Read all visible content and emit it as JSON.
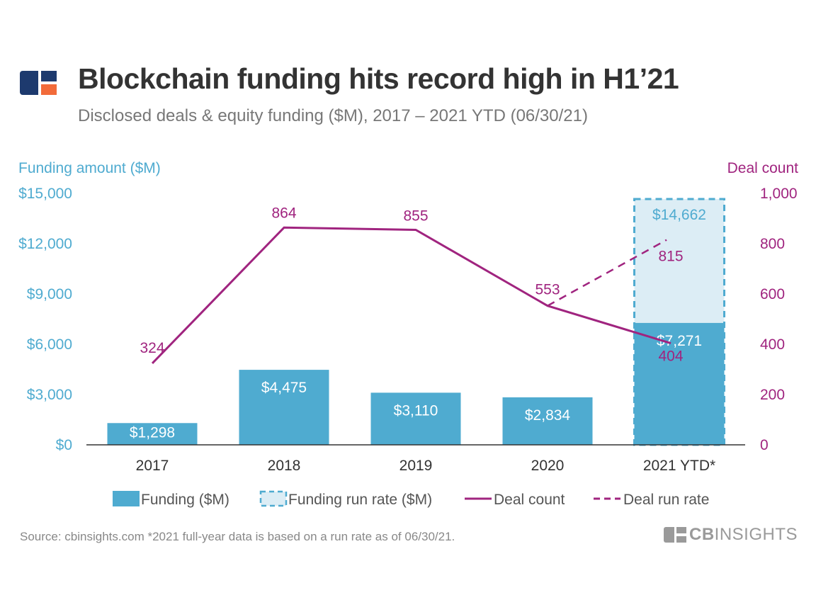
{
  "header": {
    "title": "Blockchain funding hits record high in H1’21",
    "subtitle": "Disclosed deals & equity funding ($M), 2017 – 2021 YTD (06/30/21)"
  },
  "colors": {
    "funding": "#4fabd0",
    "run_rate_fill": "#dcedf5",
    "deal": "#a0247f",
    "axis_left": "#4fabd0",
    "axis_right": "#a0247f",
    "logo_blue": "#1d3a6e",
    "logo_orange": "#f26b3a"
  },
  "chart_data": {
    "type": "bar+line",
    "title": "Blockchain funding hits record high in H1’21",
    "categories": [
      "2017",
      "2018",
      "2019",
      "2020",
      "2021 YTD*"
    ],
    "ylabel_left": "Funding amount ($M)",
    "ylabel_right": "Deal count",
    "ylim_left": [
      0,
      15000
    ],
    "ylim_right": [
      0,
      1000
    ],
    "yticks_left": [
      "$0",
      "$3,000",
      "$6,000",
      "$9,000",
      "$12,000",
      "$15,000"
    ],
    "yticks_left_values": [
      0,
      3000,
      6000,
      9000,
      12000,
      15000
    ],
    "yticks_right": [
      "0",
      "200",
      "400",
      "600",
      "800",
      "1,000"
    ],
    "yticks_right_values": [
      0,
      200,
      400,
      600,
      800,
      1000
    ],
    "series": [
      {
        "name": "Funding ($M)",
        "type": "bar",
        "axis": "left",
        "values": [
          1298,
          4475,
          3110,
          2834,
          7271
        ],
        "labels": [
          "$1,298",
          "$4,475",
          "$3,110",
          "$2,834",
          "$7,271"
        ]
      },
      {
        "name": "Funding run rate ($M)",
        "type": "bar-dashed",
        "axis": "left",
        "category": "2021 YTD*",
        "value": 14662,
        "label": "$14,662"
      },
      {
        "name": "Deal count",
        "type": "line",
        "axis": "right",
        "values": [
          324,
          864,
          855,
          553,
          404
        ],
        "labels": [
          "324",
          "864",
          "855",
          "553",
          "404"
        ]
      },
      {
        "name": "Deal run rate",
        "type": "line-dashed",
        "axis": "right",
        "from": {
          "category": "2020",
          "value": 553
        },
        "to": {
          "category": "2021 YTD*",
          "value": 815
        },
        "label": "815"
      }
    ],
    "legend": [
      "Funding ($M)",
      "Funding run rate ($M)",
      "Deal count",
      "Deal run rate"
    ]
  },
  "footer": {
    "source": "Source: cbinsights.com  *2021 full-year data is based on a run rate as of 06/30/21."
  },
  "brand": {
    "cb": "CB",
    "insights": "INSIGHTS"
  }
}
